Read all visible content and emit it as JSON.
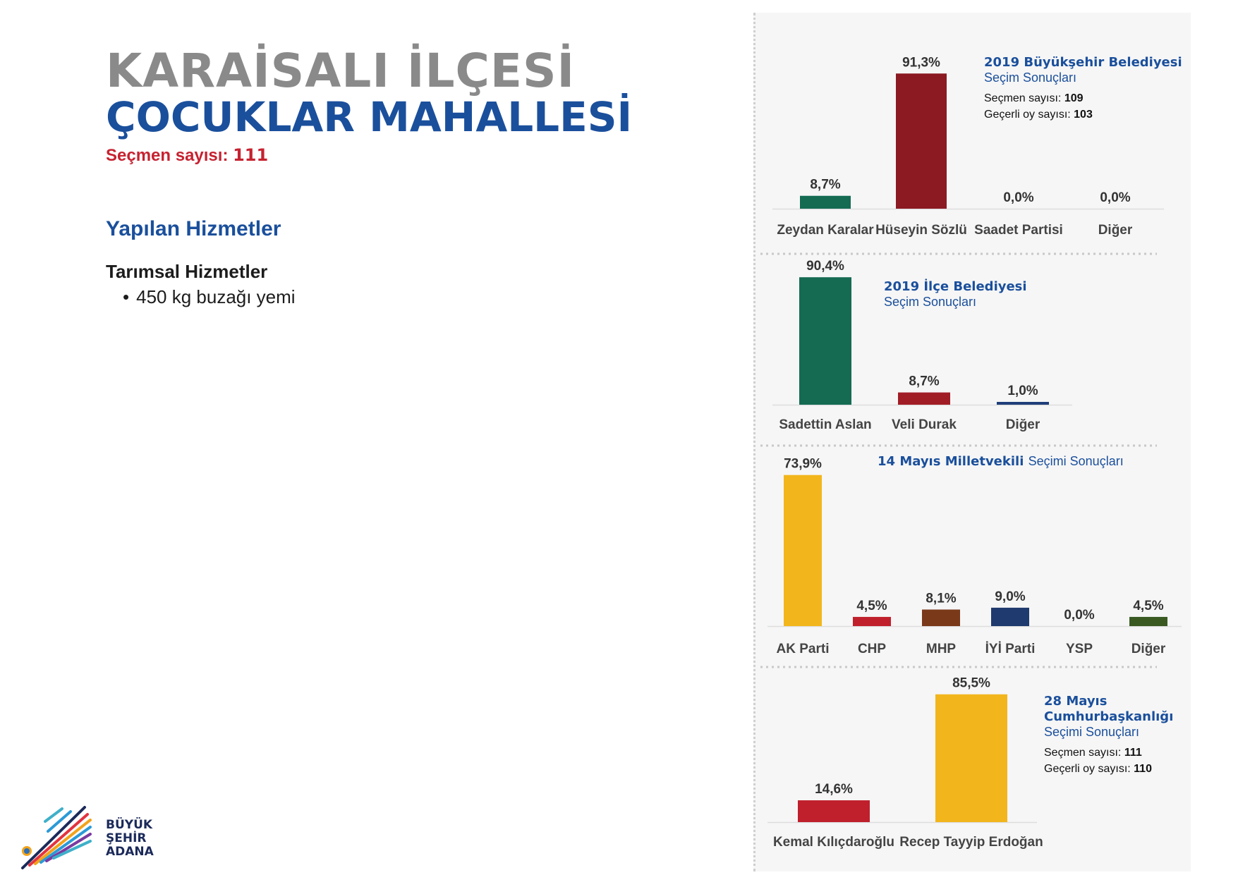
{
  "header": {
    "district": "KARAİSALI İLÇESİ",
    "neighborhood": "ÇOCUKLAR MAHALLESİ",
    "voters_label": "Seçmen sayısı:",
    "voters_value": "111"
  },
  "services": {
    "heading": "Yapılan Hizmetler",
    "category": "Tarımsal Hizmetler",
    "items": [
      "450 kg buzağı yemi"
    ]
  },
  "logo": {
    "line1": "BÜYÜK",
    "line2": "ŞEHİR",
    "line3": "ADANA"
  },
  "chart_data": [
    {
      "type": "bar",
      "title": "2019 Büyükşehir Belediyesi",
      "subtitle": "Seçim Sonuçları",
      "info": [
        {
          "label": "Seçmen sayısı:",
          "value": "109"
        },
        {
          "label": "Geçerli oy sayısı:",
          "value": "103"
        }
      ],
      "categories": [
        "Zeydan Karalar",
        "Hüseyin Sözlü",
        "Saadet Partisi",
        "Diğer"
      ],
      "values": [
        8.7,
        91.3,
        0.0,
        0.0
      ],
      "value_labels": [
        "8,7%",
        "91,3%",
        "0,0%",
        "0,0%"
      ],
      "colors": [
        "#146b52",
        "#8b1a22",
        "#8b1a22",
        "#8b1a22"
      ],
      "ylim": [
        0,
        100
      ]
    },
    {
      "type": "bar",
      "title": "2019 İlçe Belediyesi",
      "subtitle": "Seçim Sonuçları",
      "info": [],
      "categories": [
        "Sadettin Aslan",
        "Veli Durak",
        "Diğer"
      ],
      "values": [
        90.4,
        8.7,
        1.0
      ],
      "value_labels": [
        "90,4%",
        "8,7%",
        "1,0%"
      ],
      "colors": [
        "#146b52",
        "#a11d26",
        "#1f3f7a"
      ],
      "ylim": [
        0,
        100
      ]
    },
    {
      "type": "bar",
      "title": "14 Mayıs Milletvekili",
      "subtitle": "Seçimi Sonuçları",
      "info": [],
      "categories": [
        "AK Parti",
        "CHP",
        "MHP",
        "İYİ Parti",
        "YSP",
        "Diğer"
      ],
      "values": [
        73.9,
        4.5,
        8.1,
        9.0,
        0.0,
        4.5
      ],
      "value_labels": [
        "73,9%",
        "4,5%",
        "8,1%",
        "9,0%",
        "0,0%",
        "4,5%"
      ],
      "colors": [
        "#f2b61c",
        "#c0202c",
        "#7a3a1a",
        "#1f3a6e",
        "#7a2a8a",
        "#3a5a22"
      ],
      "ylim": [
        0,
        100
      ]
    },
    {
      "type": "bar",
      "title": "28 Mayıs Cumhurbaşkanlığı",
      "subtitle": "Seçimi Sonuçları",
      "info": [
        {
          "label": "Seçmen sayısı:",
          "value": "111"
        },
        {
          "label": "Geçerli oy sayısı:",
          "value": "110"
        }
      ],
      "categories": [
        "Kemal Kılıçdaroğlu",
        "Recep Tayyip Erdoğan"
      ],
      "values": [
        14.6,
        85.5
      ],
      "value_labels": [
        "14,6%",
        "85,5%"
      ],
      "colors": [
        "#c0202c",
        "#f2b61c"
      ],
      "ylim": [
        0,
        100
      ]
    }
  ]
}
